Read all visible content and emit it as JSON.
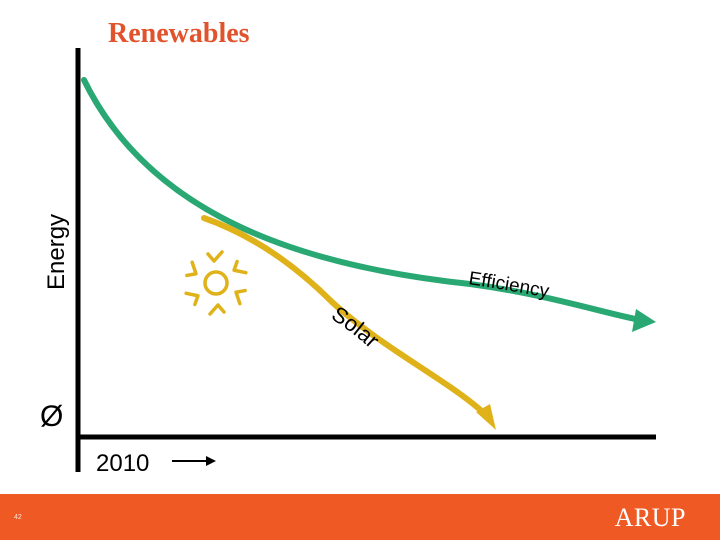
{
  "title": "Renewables",
  "axis": {
    "y_label": "Energy",
    "origin_label": "Ø",
    "x_label": "2010"
  },
  "curves": {
    "efficiency": {
      "label": "Efficiency",
      "color": "#2aa874"
    },
    "solar": {
      "label": "Solar",
      "color": "#dfb21a"
    }
  },
  "icons": {
    "sun": "sun-icon",
    "arrow": "right-arrow-icon"
  },
  "footer": {
    "page_number": "42",
    "logo": "ARUP",
    "color": "#ef5a24"
  }
}
